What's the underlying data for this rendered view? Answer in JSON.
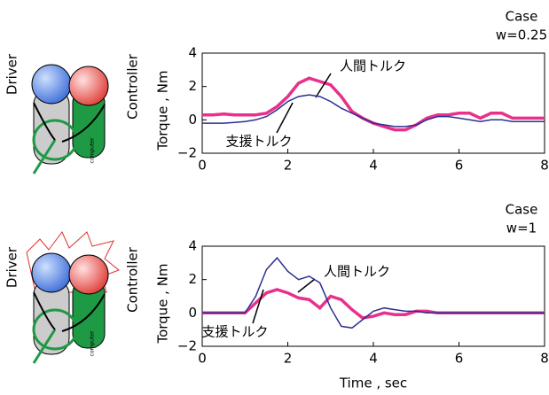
{
  "chart_data": [
    {
      "type": "line",
      "case_label": "Case",
      "condition": "w=0.25",
      "ylabel": "Torque , Nm",
      "driver_label": "Driver",
      "controller_label": "Controller",
      "device_label": "computer",
      "x": [
        0,
        0.25,
        0.5,
        0.75,
        1,
        1.25,
        1.5,
        1.75,
        2,
        2.25,
        2.5,
        2.75,
        3,
        3.25,
        3.5,
        3.75,
        4,
        4.25,
        4.5,
        4.75,
        5,
        5.25,
        5.5,
        5.75,
        6,
        6.25,
        6.5,
        6.75,
        7,
        7.25,
        7.5,
        7.75,
        8
      ],
      "xlim": [
        0,
        8
      ],
      "xticks": [
        0,
        2,
        4,
        6,
        8
      ],
      "ylim": [
        -2,
        4
      ],
      "yticks": [
        {
          "value": -2,
          "label": "−2"
        },
        0,
        2,
        4
      ],
      "series": [
        {
          "name": "人間トルク",
          "color": "#e8308c",
          "values": [
            0.3,
            0.3,
            0.35,
            0.3,
            0.3,
            0.3,
            0.4,
            0.8,
            1.4,
            2.2,
            2.5,
            2.3,
            2.1,
            1.4,
            0.5,
            0.1,
            -0.2,
            -0.4,
            -0.6,
            -0.6,
            -0.3,
            0.1,
            0.3,
            0.3,
            0.4,
            0.4,
            0.1,
            0.4,
            0.4,
            0.1,
            0.1,
            0.1,
            0.1
          ]
        },
        {
          "name": "支援トルク",
          "color": "#2b2f8f",
          "values": [
            -0.2,
            -0.2,
            -0.2,
            -0.15,
            -0.1,
            0,
            0.2,
            0.6,
            1.1,
            1.4,
            1.5,
            1.4,
            1.1,
            0.7,
            0.4,
            0.1,
            -0.2,
            -0.3,
            -0.4,
            -0.4,
            -0.3,
            0,
            0.2,
            0.2,
            0.1,
            0,
            -0.1,
            0,
            0,
            -0.1,
            -0.1,
            -0.1,
            -0.1
          ]
        }
      ]
    },
    {
      "type": "line",
      "case_label": "Case",
      "condition": "w=1",
      "ylabel": "Torque , Nm",
      "xlabel": "Time , sec",
      "driver_label": "Driver",
      "controller_label": "Controller",
      "device_label": "computer",
      "x": [
        0,
        0.25,
        0.5,
        0.75,
        1,
        1.25,
        1.5,
        1.75,
        2,
        2.25,
        2.5,
        2.75,
        3,
        3.25,
        3.5,
        3.75,
        4,
        4.25,
        4.5,
        4.75,
        5,
        5.25,
        5.5,
        5.75,
        6,
        6.25,
        6.5,
        6.75,
        7,
        7.25,
        7.5,
        7.75,
        8
      ],
      "xlim": [
        0,
        8
      ],
      "xticks": [
        0,
        2,
        4,
        6,
        8
      ],
      "ylim": [
        -2,
        4
      ],
      "yticks": [
        {
          "value": -2,
          "label": "−2"
        },
        0,
        2,
        4
      ],
      "series": [
        {
          "name": "人間トルク",
          "color": "#e8308c",
          "values": [
            0,
            0,
            0,
            0,
            0,
            0.6,
            1.2,
            1.4,
            1.2,
            0.9,
            0.8,
            0.3,
            1.0,
            0.8,
            0.2,
            -0.3,
            -0.2,
            0,
            -0.1,
            -0.1,
            0.1,
            0.1,
            0,
            0,
            0,
            0,
            0,
            0,
            0,
            0,
            0,
            0,
            0
          ]
        },
        {
          "name": "支援トルク",
          "color": "#2b2f8f",
          "values": [
            0,
            0,
            0,
            0,
            0,
            1.0,
            2.6,
            3.3,
            2.5,
            2.0,
            2.2,
            1.8,
            0.3,
            -0.8,
            -0.9,
            -0.4,
            0.1,
            0.3,
            0.2,
            0.1,
            0.1,
            0,
            0,
            0,
            0,
            0,
            0,
            0,
            0,
            0,
            0,
            0,
            0
          ]
        }
      ]
    }
  ]
}
